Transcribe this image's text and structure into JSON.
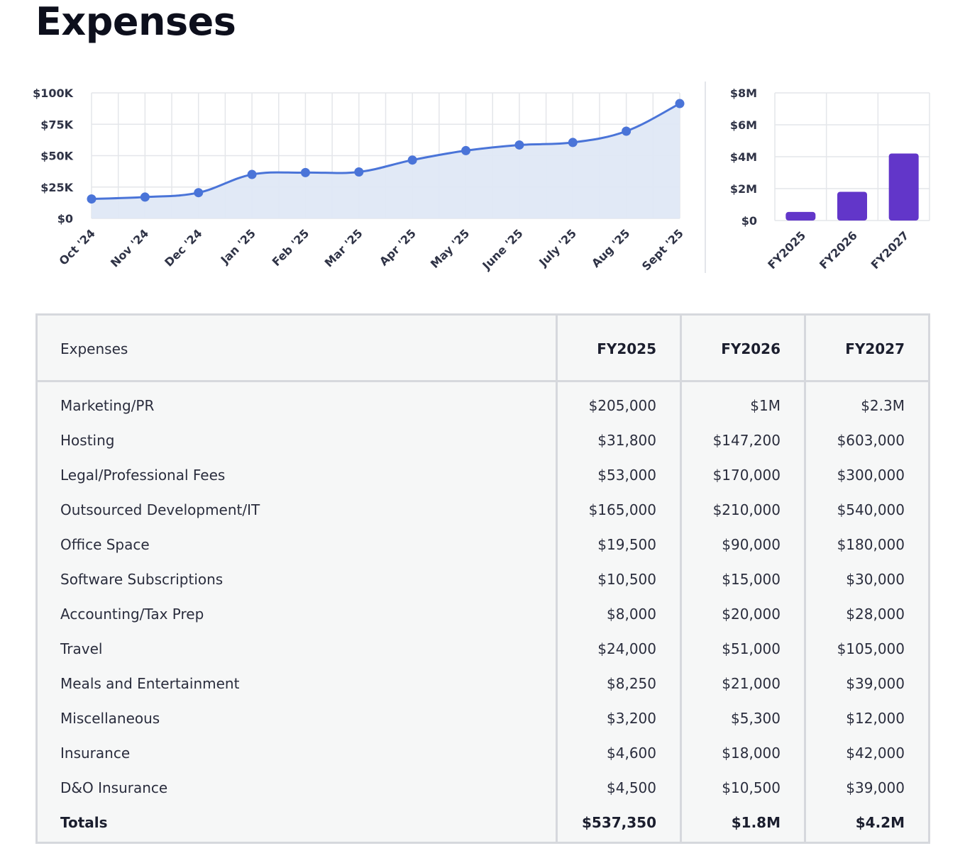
{
  "page": {
    "title": "Expenses"
  },
  "chart_data": [
    {
      "type": "area",
      "categories": [
        "Oct '24",
        "Nov '24",
        "Dec '24",
        "Jan '25",
        "Feb '25",
        "Mar '25",
        "Apr '25",
        "May '25",
        "June '25",
        "July '25",
        "Aug '25",
        "Sept '25"
      ],
      "values": [
        15500,
        17000,
        20500,
        35000,
        36500,
        37000,
        46500,
        54000,
        58500,
        60500,
        69500,
        91500
      ],
      "ylim": [
        0,
        100000
      ],
      "yticks": [
        0,
        25000,
        50000,
        75000,
        100000
      ],
      "ytick_labels": [
        "$0",
        "$25K",
        "$50K",
        "$75K",
        "$100K"
      ],
      "grid": true,
      "line_color": "#4a74d8",
      "fill_color": "#dfe8f6",
      "title": "",
      "xlabel": "",
      "ylabel": ""
    },
    {
      "type": "bar",
      "categories": [
        "FY2025",
        "FY2026",
        "FY2027"
      ],
      "values": [
        537350,
        1800000,
        4200000
      ],
      "ylim": [
        0,
        8000000
      ],
      "yticks": [
        0,
        2000000,
        4000000,
        6000000,
        8000000
      ],
      "ytick_labels": [
        "$0",
        "$2M",
        "$4M",
        "$6M",
        "$8M"
      ],
      "grid": true,
      "bar_color": "#6236c9",
      "title": "",
      "xlabel": "",
      "ylabel": ""
    }
  ],
  "table": {
    "header": {
      "label": "Expenses",
      "years": [
        "FY2025",
        "FY2026",
        "FY2027"
      ]
    },
    "rows": [
      {
        "label": "Marketing/PR",
        "values": [
          "$205,000",
          "$1M",
          "$2.3M"
        ]
      },
      {
        "label": "Hosting",
        "values": [
          "$31,800",
          "$147,200",
          "$603,000"
        ]
      },
      {
        "label": "Legal/Professional Fees",
        "values": [
          "$53,000",
          "$170,000",
          "$300,000"
        ]
      },
      {
        "label": "Outsourced Development/IT",
        "values": [
          "$165,000",
          "$210,000",
          "$540,000"
        ]
      },
      {
        "label": "Office Space",
        "values": [
          "$19,500",
          "$90,000",
          "$180,000"
        ]
      },
      {
        "label": "Software Subscriptions",
        "values": [
          "$10,500",
          "$15,000",
          "$30,000"
        ]
      },
      {
        "label": "Accounting/Tax Prep",
        "values": [
          "$8,000",
          "$20,000",
          "$28,000"
        ]
      },
      {
        "label": "Travel",
        "values": [
          "$24,000",
          "$51,000",
          "$105,000"
        ]
      },
      {
        "label": "Meals and Entertainment",
        "values": [
          "$8,250",
          "$21,000",
          "$39,000"
        ]
      },
      {
        "label": "Miscellaneous",
        "values": [
          "$3,200",
          "$5,300",
          "$12,000"
        ]
      },
      {
        "label": "Insurance",
        "values": [
          "$4,600",
          "$18,000",
          "$42,000"
        ]
      },
      {
        "label": "D&O Insurance",
        "values": [
          "$4,500",
          "$10,500",
          "$39,000"
        ]
      }
    ],
    "totals": {
      "label": "Totals",
      "values": [
        "$537,350",
        "$1.8M",
        "$4.2M"
      ]
    }
  }
}
